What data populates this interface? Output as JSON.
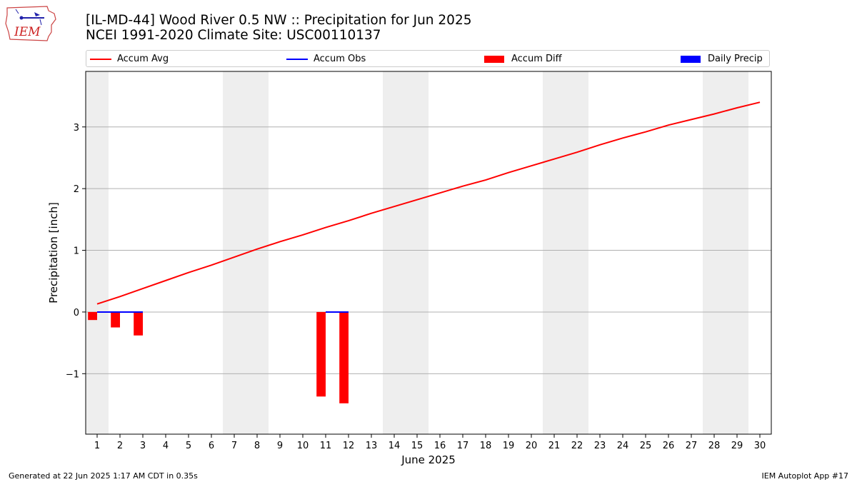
{
  "header": {
    "title_line1": "[IL-MD-44] Wood River 0.5 NW :: Precipitation for Jun 2025",
    "title_line2": "NCEI 1991-2020 Climate Site: USC00110137",
    "logo_text": "IEM"
  },
  "footer": {
    "left": "Generated at 22 Jun 2025 1:17 AM CDT in 0.35s",
    "right": "IEM Autoplot App #17"
  },
  "chart_data": {
    "type": "line",
    "title": "[IL-MD-44] Wood River 0.5 NW :: Precipitation for Jun 2025",
    "subtitle": "NCEI 1991-2020 Climate Site: USC00110137",
    "xlabel": "June 2025",
    "ylabel": "Precipitation [inch]",
    "x": [
      1,
      2,
      3,
      4,
      5,
      6,
      7,
      8,
      9,
      10,
      11,
      12,
      13,
      14,
      15,
      16,
      17,
      18,
      19,
      20,
      21,
      22,
      23,
      24,
      25,
      26,
      27,
      28,
      29,
      30
    ],
    "xlim": [
      0.5,
      30.5
    ],
    "ylim": [
      -1.98,
      3.9
    ],
    "yticks": [
      -1,
      0,
      1,
      2,
      3
    ],
    "ytick_labels": [
      "−1",
      "0",
      "1",
      "2",
      "3"
    ],
    "grid": "horizontal",
    "weekend_shading_days": [
      1,
      7,
      8,
      14,
      15,
      21,
      22,
      28,
      29
    ],
    "legend": {
      "placement": "top",
      "entries": [
        {
          "label": "Accum Avg",
          "kind": "line",
          "color": "#ff0000"
        },
        {
          "label": "Accum Obs",
          "kind": "line",
          "color": "#0000ff"
        },
        {
          "label": "Accum Diff",
          "kind": "bar",
          "color": "#ff0000"
        },
        {
          "label": "Daily Precip",
          "kind": "bar",
          "color": "#0000ff"
        }
      ]
    },
    "series": [
      {
        "name": "Accum Avg",
        "type": "line",
        "color": "#ff0000",
        "x": [
          1,
          2,
          3,
          4,
          5,
          6,
          7,
          8,
          9,
          10,
          11,
          12,
          13,
          14,
          15,
          16,
          17,
          18,
          19,
          20,
          21,
          22,
          23,
          24,
          25,
          26,
          27,
          28,
          29,
          30
        ],
        "values": [
          0.13,
          0.25,
          0.38,
          0.51,
          0.64,
          0.76,
          0.89,
          1.02,
          1.14,
          1.25,
          1.37,
          1.48,
          1.6,
          1.71,
          1.82,
          1.93,
          2.04,
          2.14,
          2.26,
          2.37,
          2.48,
          2.59,
          2.71,
          2.82,
          2.92,
          3.03,
          3.12,
          3.21,
          3.31,
          3.4
        ]
      },
      {
        "name": "Accum Obs",
        "type": "step",
        "color": "#0000ff",
        "segments": [
          {
            "x": [
              1,
              3
            ],
            "value": 0.0
          },
          {
            "x": [
              11,
              12
            ],
            "value": 0.0
          }
        ]
      },
      {
        "name": "Accum Diff",
        "type": "bar",
        "color": "#ff0000",
        "x": [
          1,
          2,
          3,
          11,
          12
        ],
        "values": [
          -0.13,
          -0.25,
          -0.38,
          -1.37,
          -1.48
        ]
      },
      {
        "name": "Daily Precip",
        "type": "bar",
        "color": "#0000ff",
        "x": [],
        "values": []
      }
    ]
  }
}
